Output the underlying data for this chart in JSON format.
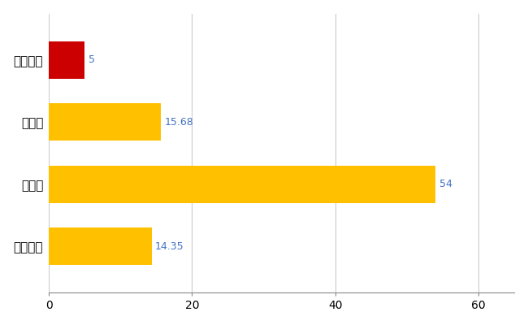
{
  "categories": [
    "全国平均",
    "県最大",
    "県平均",
    "田布施町"
  ],
  "values": [
    14.35,
    54,
    15.68,
    5
  ],
  "bar_colors": [
    "#FFC000",
    "#FFC000",
    "#FFC000",
    "#CC0000"
  ],
  "labels": [
    "14.35",
    "54",
    "15.68",
    "5"
  ],
  "xlim": [
    0,
    65
  ],
  "xticks": [
    0,
    20,
    40,
    60
  ],
  "background_color": "#FFFFFF",
  "grid_color": "#CCCCCC",
  "label_color": "#4472C4",
  "bar_height": 0.6,
  "figsize": [
    6.5,
    4.0
  ],
  "dpi": 100,
  "label_fontsize": 9,
  "tick_fontsize": 10,
  "ytick_fontsize": 11
}
